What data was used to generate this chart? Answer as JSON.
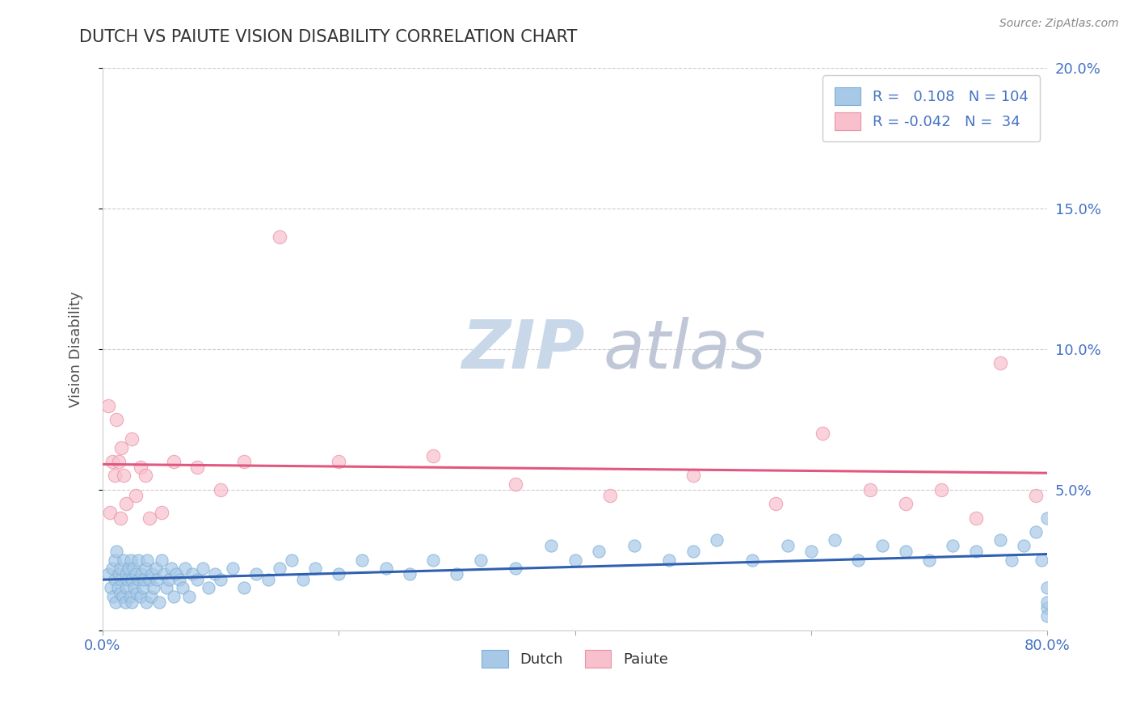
{
  "title": "DUTCH VS PAIUTE VISION DISABILITY CORRELATION CHART",
  "source": "Source: ZipAtlas.com",
  "ylabel": "Vision Disability",
  "xlim": [
    0.0,
    0.8
  ],
  "ylim": [
    0.0,
    0.2
  ],
  "yticks": [
    0.0,
    0.05,
    0.1,
    0.15,
    0.2
  ],
  "ytick_labels": [
    "",
    "5.0%",
    "10.0%",
    "15.0%",
    "20.0%"
  ],
  "xticks": [
    0.0,
    0.2,
    0.4,
    0.6,
    0.8
  ],
  "xtick_labels": [
    "0.0%",
    "",
    "",
    "",
    "80.0%"
  ],
  "dutch_R": 0.108,
  "dutch_N": 104,
  "paiute_R": -0.042,
  "paiute_N": 34,
  "dutch_color": "#a8c8e8",
  "dutch_edge_color": "#7aafd4",
  "paiute_color": "#f8c0cc",
  "paiute_edge_color": "#e890a8",
  "dutch_line_color": "#3060b0",
  "paiute_line_color": "#e05880",
  "title_color": "#333333",
  "axis_color": "#4472c4",
  "watermark_zip_color": "#c8d8e8",
  "watermark_atlas_color": "#c0c8d8",
  "background_color": "#ffffff",
  "grid_color": "#cccccc",
  "dutch_x": [
    0.005,
    0.007,
    0.008,
    0.009,
    0.01,
    0.01,
    0.011,
    0.012,
    0.013,
    0.014,
    0.015,
    0.015,
    0.016,
    0.017,
    0.018,
    0.019,
    0.02,
    0.02,
    0.021,
    0.022,
    0.023,
    0.024,
    0.025,
    0.025,
    0.026,
    0.027,
    0.028,
    0.029,
    0.03,
    0.03,
    0.032,
    0.033,
    0.034,
    0.035,
    0.036,
    0.037,
    0.038,
    0.04,
    0.041,
    0.042,
    0.043,
    0.045,
    0.046,
    0.048,
    0.05,
    0.052,
    0.054,
    0.056,
    0.058,
    0.06,
    0.062,
    0.065,
    0.068,
    0.07,
    0.073,
    0.076,
    0.08,
    0.085,
    0.09,
    0.095,
    0.1,
    0.11,
    0.12,
    0.13,
    0.14,
    0.15,
    0.16,
    0.17,
    0.18,
    0.2,
    0.22,
    0.24,
    0.26,
    0.28,
    0.3,
    0.32,
    0.35,
    0.38,
    0.4,
    0.42,
    0.45,
    0.48,
    0.5,
    0.52,
    0.55,
    0.58,
    0.6,
    0.62,
    0.64,
    0.66,
    0.68,
    0.7,
    0.72,
    0.74,
    0.76,
    0.77,
    0.78,
    0.79,
    0.795,
    0.8,
    0.8,
    0.8,
    0.8,
    0.8
  ],
  "dutch_y": [
    0.02,
    0.015,
    0.022,
    0.012,
    0.018,
    0.025,
    0.01,
    0.028,
    0.015,
    0.02,
    0.013,
    0.022,
    0.018,
    0.012,
    0.025,
    0.01,
    0.02,
    0.015,
    0.018,
    0.022,
    0.012,
    0.025,
    0.018,
    0.01,
    0.022,
    0.015,
    0.02,
    0.013,
    0.018,
    0.025,
    0.012,
    0.02,
    0.015,
    0.018,
    0.022,
    0.01,
    0.025,
    0.018,
    0.012,
    0.02,
    0.015,
    0.022,
    0.018,
    0.01,
    0.025,
    0.02,
    0.015,
    0.018,
    0.022,
    0.012,
    0.02,
    0.018,
    0.015,
    0.022,
    0.012,
    0.02,
    0.018,
    0.022,
    0.015,
    0.02,
    0.018,
    0.022,
    0.015,
    0.02,
    0.018,
    0.022,
    0.025,
    0.018,
    0.022,
    0.02,
    0.025,
    0.022,
    0.02,
    0.025,
    0.02,
    0.025,
    0.022,
    0.03,
    0.025,
    0.028,
    0.03,
    0.025,
    0.028,
    0.032,
    0.025,
    0.03,
    0.028,
    0.032,
    0.025,
    0.03,
    0.028,
    0.025,
    0.03,
    0.028,
    0.032,
    0.025,
    0.03,
    0.035,
    0.025,
    0.04,
    0.008,
    0.01,
    0.005,
    0.015
  ],
  "paiute_x": [
    0.005,
    0.006,
    0.008,
    0.01,
    0.012,
    0.014,
    0.015,
    0.016,
    0.018,
    0.02,
    0.025,
    0.028,
    0.032,
    0.036,
    0.04,
    0.05,
    0.06,
    0.08,
    0.1,
    0.12,
    0.15,
    0.2,
    0.28,
    0.35,
    0.43,
    0.5,
    0.57,
    0.61,
    0.65,
    0.68,
    0.71,
    0.74,
    0.76,
    0.79
  ],
  "paiute_y": [
    0.08,
    0.042,
    0.06,
    0.055,
    0.075,
    0.06,
    0.04,
    0.065,
    0.055,
    0.045,
    0.068,
    0.048,
    0.058,
    0.055,
    0.04,
    0.042,
    0.06,
    0.058,
    0.05,
    0.06,
    0.14,
    0.06,
    0.062,
    0.052,
    0.048,
    0.055,
    0.045,
    0.07,
    0.05,
    0.045,
    0.05,
    0.04,
    0.095,
    0.048
  ]
}
